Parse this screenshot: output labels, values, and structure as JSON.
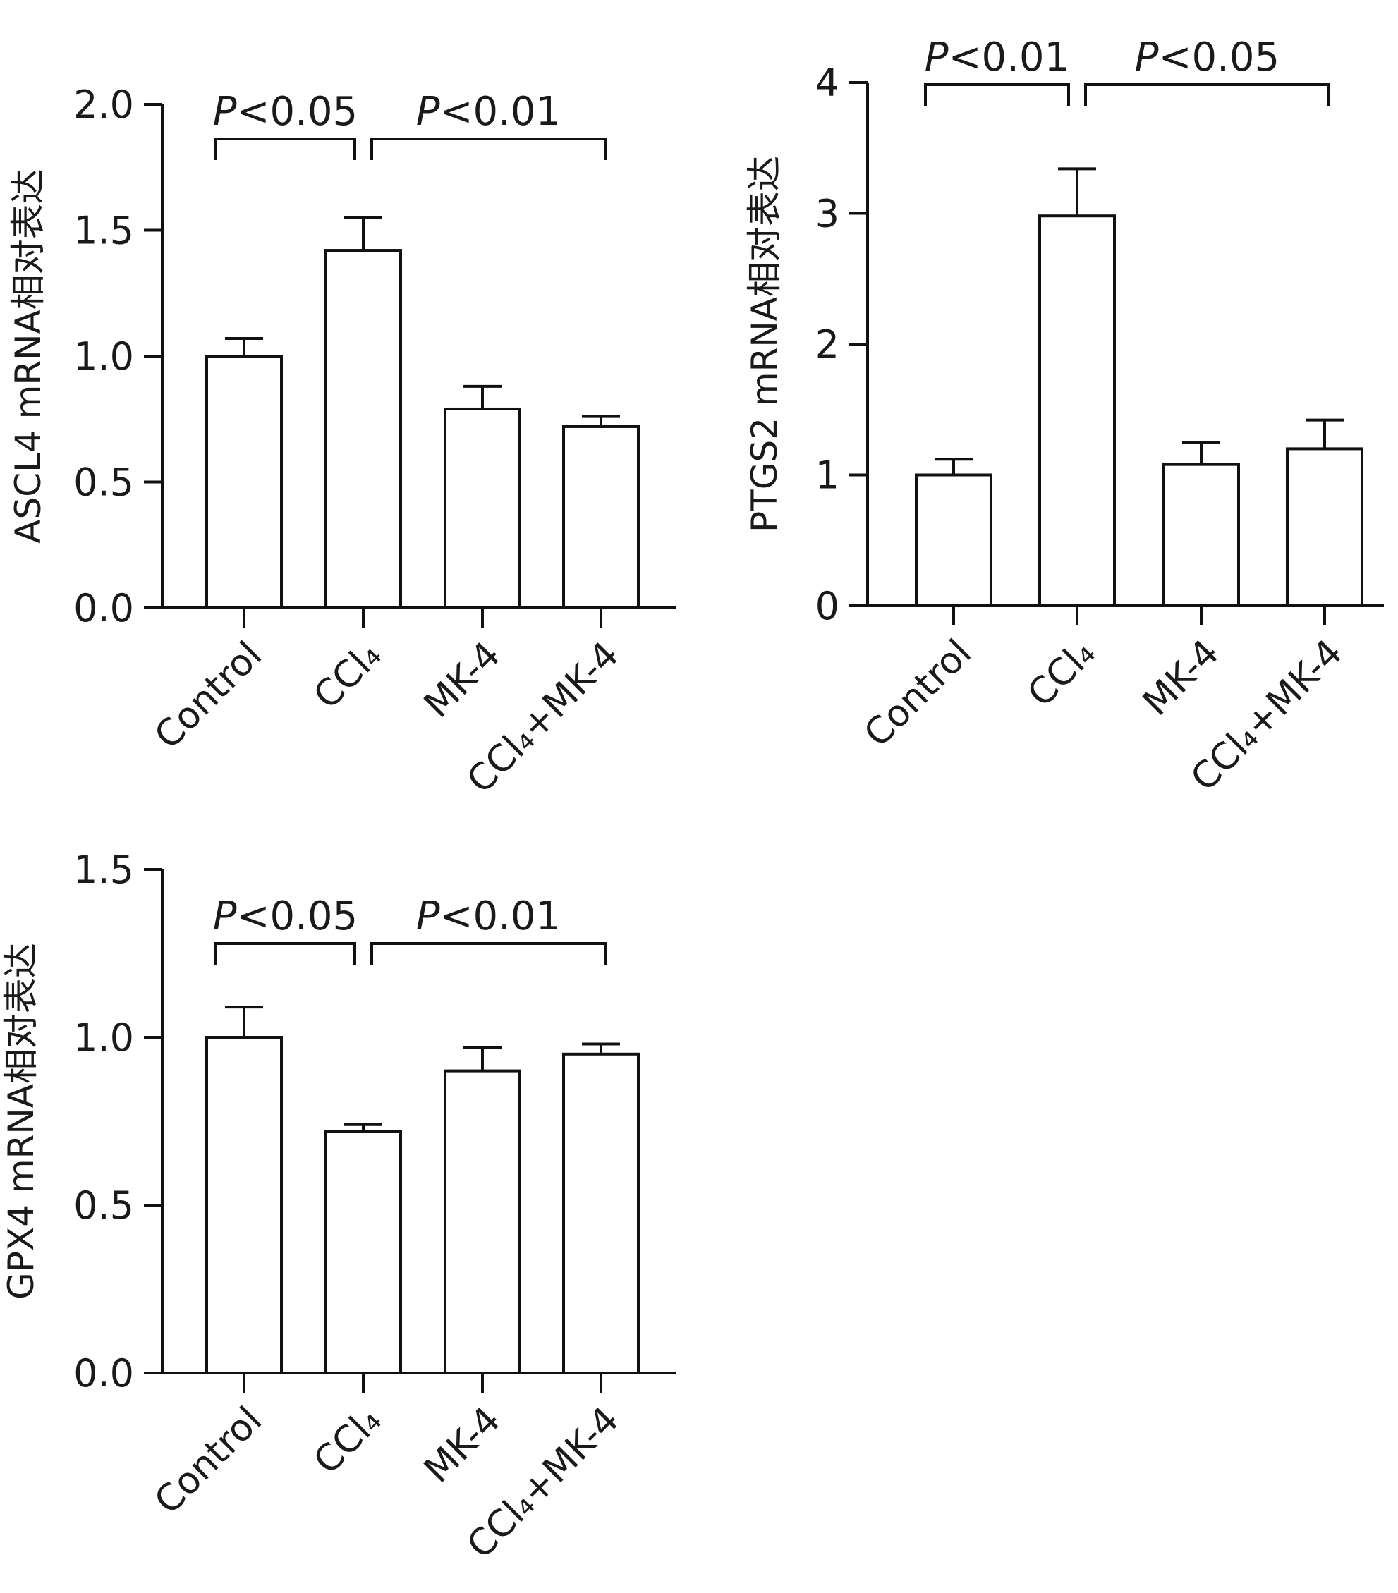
{
  "chart_data": [
    {
      "type": "bar",
      "ylabel": "ASCL4 mRNA相对表达",
      "categories": [
        "Control",
        "CCl₄",
        "MK-4",
        "CCl₄+MK-4"
      ],
      "values": [
        1.0,
        1.42,
        0.79,
        0.72
      ],
      "errors": [
        0.07,
        0.13,
        0.09,
        0.04
      ],
      "ylim": [
        0,
        2.0
      ],
      "yticks": [
        0.0,
        0.5,
        1.0,
        1.5,
        2.0
      ],
      "ytick_labels": [
        "0.0",
        "0.5",
        "1.0",
        "1.5",
        "2.0"
      ],
      "significance": [
        {
          "from": 0,
          "to": 1,
          "level": 1.85,
          "prefix": "P",
          "text": "<0.05"
        },
        {
          "from": 1,
          "to": 3,
          "level": 1.85,
          "prefix": "P",
          "text": "<0.01"
        }
      ]
    },
    {
      "type": "bar",
      "ylabel": "PTGS2 mRNA相对表达",
      "categories": [
        "Control",
        "CCl₄",
        "MK-4",
        "CCl₄+MK-4"
      ],
      "values": [
        1.0,
        2.98,
        1.08,
        1.2
      ],
      "errors": [
        0.12,
        0.36,
        0.17,
        0.22
      ],
      "ylim": [
        0,
        4
      ],
      "yticks": [
        0,
        1,
        2,
        3,
        4
      ],
      "ytick_labels": [
        "0",
        "1",
        "2",
        "3",
        "4"
      ],
      "significance": [
        {
          "from": 0,
          "to": 1,
          "level": 3.9,
          "prefix": "P",
          "text": "<0.01"
        },
        {
          "from": 1,
          "to": 3,
          "level": 3.9,
          "prefix": "P",
          "text": "<0.05"
        }
      ]
    },
    {
      "type": "bar",
      "ylabel": "GPX4 mRNA相对表达",
      "categories": [
        "Control",
        "CCl₄",
        "MK-4",
        "CCl₄+MK-4"
      ],
      "values": [
        1.0,
        0.72,
        0.9,
        0.95
      ],
      "errors": [
        0.09,
        0.02,
        0.07,
        0.03
      ],
      "ylim": [
        0,
        1.5
      ],
      "yticks": [
        0.0,
        0.5,
        1.0,
        1.5
      ],
      "ytick_labels": [
        "0.0",
        "0.5",
        "1.0",
        "1.5"
      ],
      "significance": [
        {
          "from": 0,
          "to": 1,
          "level": 1.28,
          "prefix": "P",
          "text": "<0.05"
        },
        {
          "from": 1,
          "to": 3,
          "level": 1.28,
          "prefix": "P",
          "text": "<0.01"
        }
      ]
    }
  ]
}
